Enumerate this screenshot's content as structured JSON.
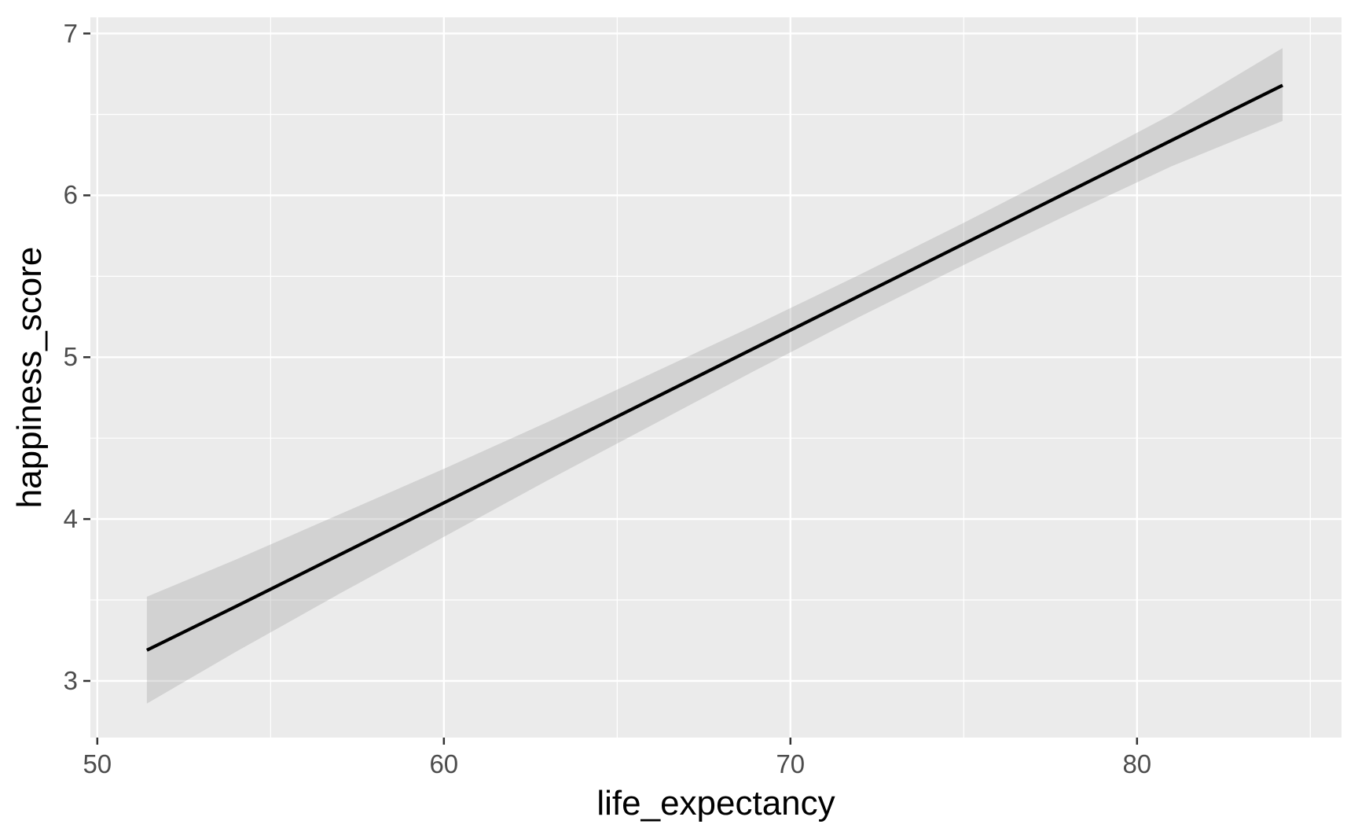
{
  "chart_data": {
    "type": "line",
    "subtype": "regression-smooth-with-ci-ribbon",
    "title": "",
    "xlabel": "life_expectancy",
    "ylabel": "happiness_score",
    "xlim": [
      49.8,
      85.9
    ],
    "ylim": [
      2.65,
      7.1
    ],
    "x_ticks": [
      50,
      60,
      70,
      80
    ],
    "x_minor_ticks": [
      55,
      65,
      75,
      85
    ],
    "y_ticks": [
      3,
      4,
      5,
      6,
      7
    ],
    "y_minor_ticks": [
      3.5,
      4.5,
      5.5,
      6.5
    ],
    "grid": true,
    "legend": false,
    "series": [
      {
        "name": "fitted-line",
        "x": [
          51.43,
          54,
          57,
          60,
          63,
          66,
          69,
          72,
          75,
          78,
          81,
          84.2
        ],
        "y": [
          3.19,
          3.46,
          3.78,
          4.1,
          4.42,
          4.74,
          5.06,
          5.38,
          5.7,
          6.02,
          6.34,
          6.68
        ]
      }
    ],
    "ribbon": {
      "name": "confidence-interval",
      "x": [
        51.43,
        54,
        57,
        60,
        63,
        66,
        69,
        72,
        75,
        78,
        81,
        84.2
      ],
      "upper": [
        3.52,
        3.75,
        4.03,
        4.31,
        4.6,
        4.9,
        5.2,
        5.51,
        5.83,
        6.16,
        6.5,
        6.91
      ],
      "lower": [
        2.86,
        3.18,
        3.54,
        3.89,
        4.24,
        4.58,
        4.92,
        5.25,
        5.57,
        5.88,
        6.18,
        6.46
      ]
    },
    "colors": {
      "background": "#FFFFFF",
      "panel": "#EBEBEB",
      "grid": "#FFFFFF",
      "line": "#000000",
      "ribbon": "#999999",
      "ribbon_opacity": 0.3,
      "tick_label": "#4D4D4D",
      "axis_title": "#000000",
      "tick_mark": "#333333"
    }
  }
}
